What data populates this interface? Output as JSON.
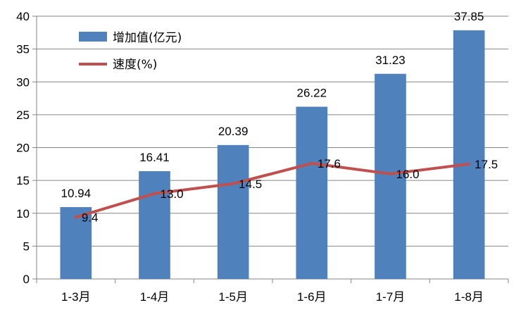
{
  "chart_data": {
    "type": "bar",
    "categories": [
      "1-3月",
      "1-4月",
      "1-5月",
      "1-6月",
      "1-7月",
      "1-8月"
    ],
    "series": [
      {
        "name": "增加值(亿元)",
        "kind": "bar",
        "color": "#4f81bd",
        "values": [
          10.94,
          16.41,
          20.39,
          26.22,
          31.23,
          37.85
        ],
        "labels": [
          "10.94",
          "16.41",
          "20.39",
          "26.22",
          "31.23",
          "37.85"
        ]
      },
      {
        "name": "速度(%)",
        "kind": "line",
        "color": "#c0504d",
        "values": [
          9.4,
          13.0,
          14.5,
          17.6,
          16.0,
          17.5
        ],
        "labels": [
          "9.4",
          "13.0",
          "14.5",
          "17.6",
          "16.0",
          "17.5"
        ]
      }
    ],
    "ylim": [
      0,
      40
    ],
    "yticks": [
      "0",
      "5",
      "10",
      "15",
      "20",
      "25",
      "30",
      "35",
      "40"
    ],
    "grid": true,
    "legend_position": "top-left",
    "title": "",
    "xlabel": "",
    "ylabel": ""
  }
}
